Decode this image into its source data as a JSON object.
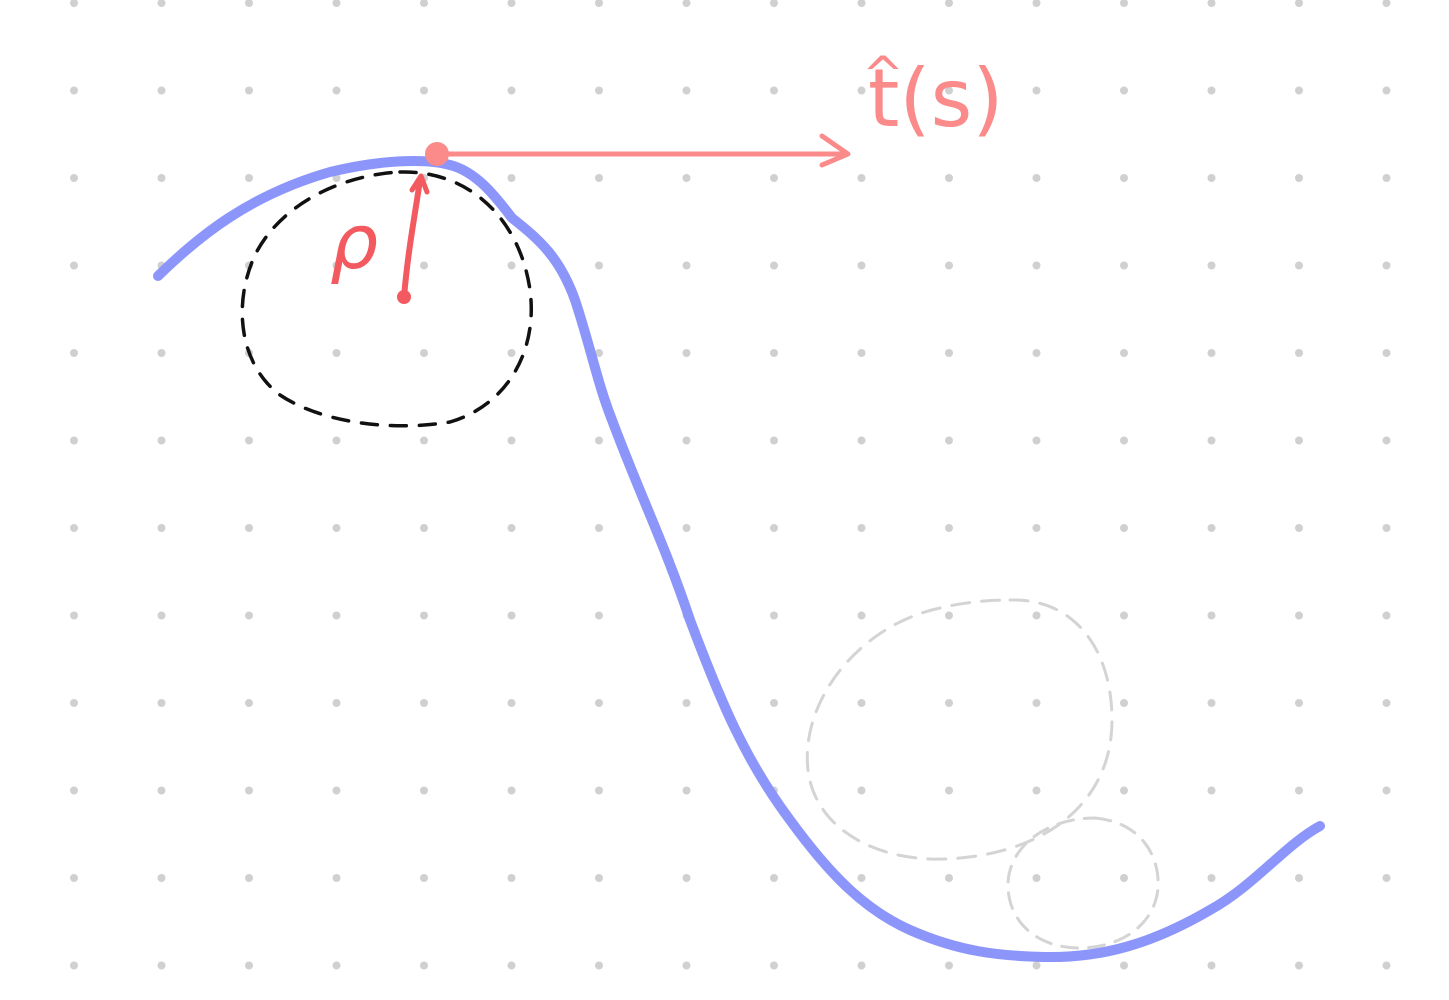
{
  "labels": {
    "tangent_label": "t(s)",
    "tangent_hat": "^",
    "radius_label": "ρ"
  },
  "colors": {
    "curve": "#8c96fa",
    "tangent": "#fb8a8a",
    "radius": "#f25a5f",
    "osculating_circle": "#111111",
    "faint_circles": "#d4d4d4",
    "grid_dot": "#d0d0d0",
    "background": "#ffffff"
  }
}
